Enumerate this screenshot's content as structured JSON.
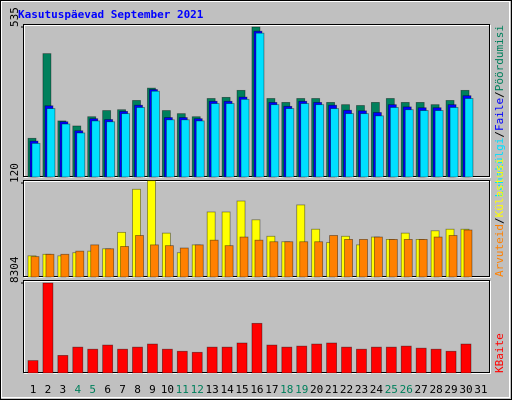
{
  "title": "Kasutuspäevad September 2021",
  "legend_separator": "/",
  "chart_data": [
    {
      "type": "bar",
      "ylim": [
        0,
        535
      ],
      "yticks": [
        535
      ],
      "series": [
        {
          "name": "Pöördumisi",
          "color": "#00805c",
          "values": [
            138,
            440,
            200,
            182,
            215,
            237,
            240,
            273,
            317,
            237,
            226,
            215,
            280,
            284,
            309,
            535,
            280,
            266,
            280,
            280,
            266,
            258,
            255,
            266,
            280,
            266,
            266,
            258,
            273,
            309,
            0
          ]
        },
        {
          "name": "Faile",
          "color": "#0000ff",
          "values": [
            128,
            254,
            197,
            165,
            208,
            205,
            234,
            256,
            312,
            212,
            212,
            208,
            270,
            270,
            285,
            520,
            266,
            252,
            270,
            266,
            256,
            238,
            236,
            230,
            258,
            250,
            247,
            247,
            258,
            290,
            0
          ]
        },
        {
          "name": "Lehekülgi",
          "color": "#00e0ff",
          "values": [
            120,
            244,
            189,
            157,
            200,
            197,
            226,
            248,
            306,
            204,
            204,
            200,
            262,
            262,
            277,
            513,
            258,
            244,
            262,
            258,
            244,
            226,
            226,
            218,
            248,
            240,
            237,
            237,
            248,
            280,
            0
          ]
        }
      ]
    },
    {
      "type": "bar",
      "ylim": [
        0,
        120
      ],
      "yticks": [
        120
      ],
      "series": [
        {
          "name": "Külastusi",
          "color": "#ffff00",
          "values": [
            27,
            29,
            27,
            31,
            33,
            36,
            57,
            112,
            123,
            56,
            31,
            41,
            83,
            83,
            97,
            73,
            52,
            45,
            92,
            61,
            44,
            52,
            41,
            51,
            48,
            56,
            48,
            59,
            61,
            61,
            0
          ]
        },
        {
          "name": "Arvuteid",
          "color": "#ff8000",
          "values": [
            26,
            29,
            29,
            33,
            41,
            36,
            39,
            53,
            41,
            40,
            37,
            41,
            47,
            40,
            51,
            47,
            45,
            45,
            45,
            45,
            53,
            48,
            48,
            51,
            48,
            48,
            48,
            51,
            53,
            60,
            0
          ]
        }
      ]
    },
    {
      "type": "bar",
      "ylim": [
        0,
        8304
      ],
      "yticks": [
        8304
      ],
      "categories": [
        "1",
        "2",
        "3",
        "4",
        "5",
        "6",
        "7",
        "8",
        "9",
        "10",
        "11",
        "12",
        "13",
        "14",
        "15",
        "16",
        "17",
        "18",
        "19",
        "20",
        "21",
        "22",
        "23",
        "24",
        "25",
        "26",
        "27",
        "28",
        "29",
        "30",
        "31"
      ],
      "category_colors": [
        "#000000",
        "#000000",
        "#000000",
        "#00805c",
        "#00805c",
        "#000000",
        "#000000",
        "#000000",
        "#000000",
        "#000000",
        "#00805c",
        "#00805c",
        "#000000",
        "#000000",
        "#000000",
        "#000000",
        "#000000",
        "#00805c",
        "#00805c",
        "#000000",
        "#000000",
        "#000000",
        "#000000",
        "#000000",
        "#00805c",
        "#00805c",
        "#000000",
        "#000000",
        "#000000",
        "#000000",
        "#000000"
      ],
      "series": [
        {
          "name": "KBaite",
          "color": "#ff0000",
          "values": [
            1145,
            8304,
            1622,
            2385,
            2194,
            2576,
            2194,
            2385,
            2671,
            2194,
            2003,
            1908,
            2385,
            2385,
            2767,
            4580,
            2576,
            2385,
            2480,
            2671,
            2767,
            2385,
            2194,
            2385,
            2385,
            2480,
            2290,
            2194,
            2003,
            2671,
            0
          ]
        }
      ]
    }
  ]
}
